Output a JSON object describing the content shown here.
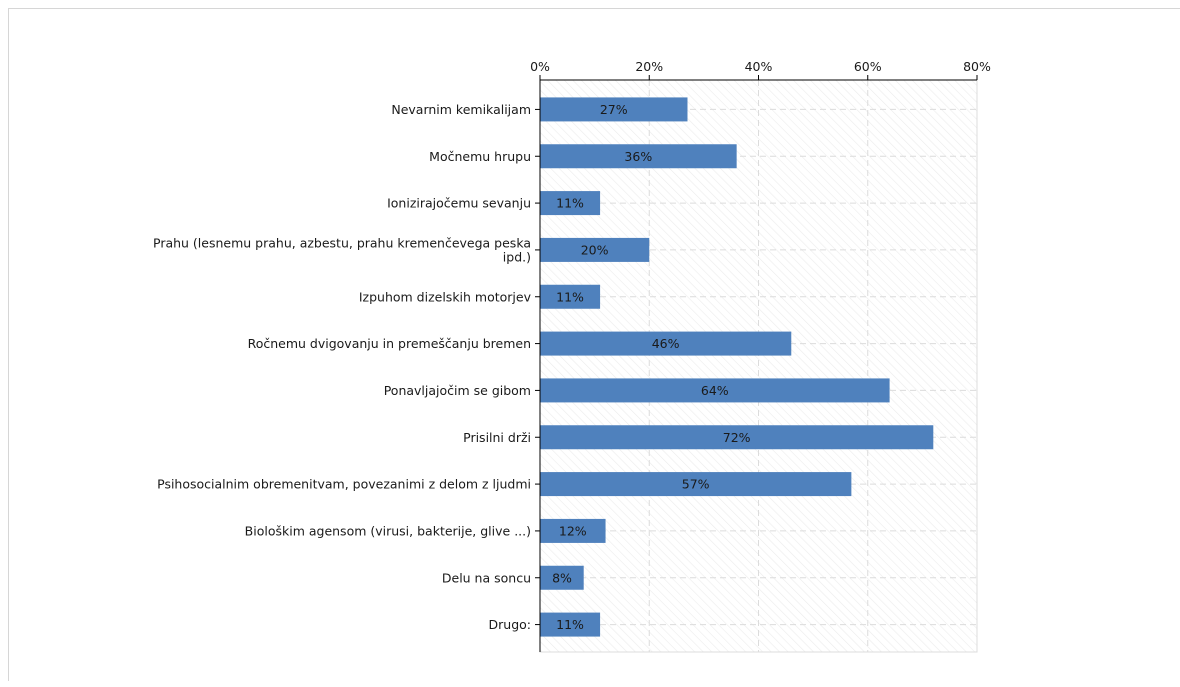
{
  "chart_data": {
    "type": "bar",
    "orientation": "horizontal",
    "categories": [
      [
        "Nevarnim kemikalijam"
      ],
      [
        "Močnemu hrupu"
      ],
      [
        "Ionizirajočemu sevanju"
      ],
      [
        "Prahu (lesnemu prahu, azbestu, prahu kremenčevega peska",
        "ipd.)"
      ],
      [
        "Izpuhom dizelskih motorjev"
      ],
      [
        "Ročnemu dvigovanju in premeščanju bremen"
      ],
      [
        "Ponavljajočim se gibom"
      ],
      [
        "Prisilni drži"
      ],
      [
        "Psihosocialnim obremenitvam, povezanimi z delom z ljudmi"
      ],
      [
        "Biološkim agensom (virusi, bakterije, glive ...)"
      ],
      [
        "Delu na soncu"
      ],
      [
        "Drugo:"
      ]
    ],
    "values": [
      27,
      36,
      11,
      20,
      11,
      46,
      64,
      72,
      57,
      12,
      8,
      11
    ],
    "value_labels": [
      "27%",
      "36%",
      "11%",
      "20%",
      "11%",
      "46%",
      "64%",
      "72%",
      "57%",
      "12%",
      "8%",
      "11%"
    ],
    "x_ticks": [
      "0%",
      "20%",
      "40%",
      "60%",
      "80%"
    ],
    "xlim": [
      0,
      80
    ],
    "grid": true,
    "colors": {
      "bar": "#4f81bd",
      "grid": "#dcdcdc",
      "hatch": "#ececec",
      "axis": "#000000"
    }
  }
}
